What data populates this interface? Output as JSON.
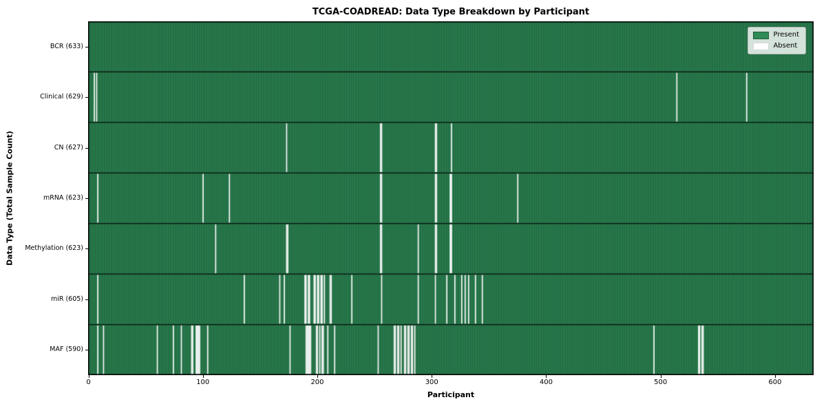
{
  "chart_data": {
    "type": "heatmap",
    "title": "TCGA-COADREAD: Data Type Breakdown by Participant",
    "xlabel": "Participant",
    "ylabel": "Data Type (Total Sample Count)",
    "legend": {
      "present": "Present",
      "absent": "Absent"
    },
    "n_participants": 633,
    "x_range": [
      0,
      634
    ],
    "x_ticks": [
      0,
      100,
      200,
      300,
      400,
      500,
      600
    ],
    "colors": {
      "present": "#2e8b57",
      "absent": "#ffffff",
      "cell_edge": "rgba(0,0,0,0.42)",
      "row_separator": "rgba(0,0,0,0.85)",
      "plot_border": "#000000"
    },
    "rows": [
      {
        "label": "BCR (633)",
        "data_type": "BCR",
        "total": 633,
        "absent": []
      },
      {
        "label": "Clinical (629)",
        "data_type": "Clinical",
        "total": 629,
        "absent": [
          5,
          7,
          514,
          575
        ]
      },
      {
        "label": "CN (627)",
        "data_type": "CN",
        "total": 627,
        "absent": [
          173,
          255,
          256,
          303,
          304,
          317
        ]
      },
      {
        "label": "mRNA (623)",
        "data_type": "mRNA",
        "total": 623,
        "absent": [
          8,
          100,
          123,
          255,
          256,
          303,
          304,
          316,
          317,
          375
        ]
      },
      {
        "label": "Methylation (623)",
        "data_type": "Methylation",
        "total": 623,
        "absent": [
          111,
          173,
          174,
          255,
          256,
          288,
          303,
          304,
          316,
          317
        ]
      },
      {
        "label": "miR (605)",
        "data_type": "miR",
        "total": 605,
        "absent": [
          8,
          136,
          167,
          171,
          189,
          190,
          192,
          193,
          197,
          198,
          200,
          201,
          203,
          204,
          206,
          211,
          212,
          230,
          256,
          288,
          303,
          313,
          320,
          326,
          329,
          332,
          338,
          344
        ]
      },
      {
        "label": "MAF (590)",
        "data_type": "MAF",
        "total": 590,
        "absent": [
          8,
          13,
          60,
          74,
          81,
          90,
          91,
          94,
          95,
          96,
          97,
          104,
          176,
          190,
          191,
          192,
          193,
          194,
          199,
          200,
          202,
          204,
          205,
          209,
          215,
          253,
          267,
          268,
          270,
          271,
          273,
          276,
          277,
          279,
          280,
          282,
          283,
          285,
          494,
          533,
          534,
          536,
          537
        ]
      }
    ]
  }
}
